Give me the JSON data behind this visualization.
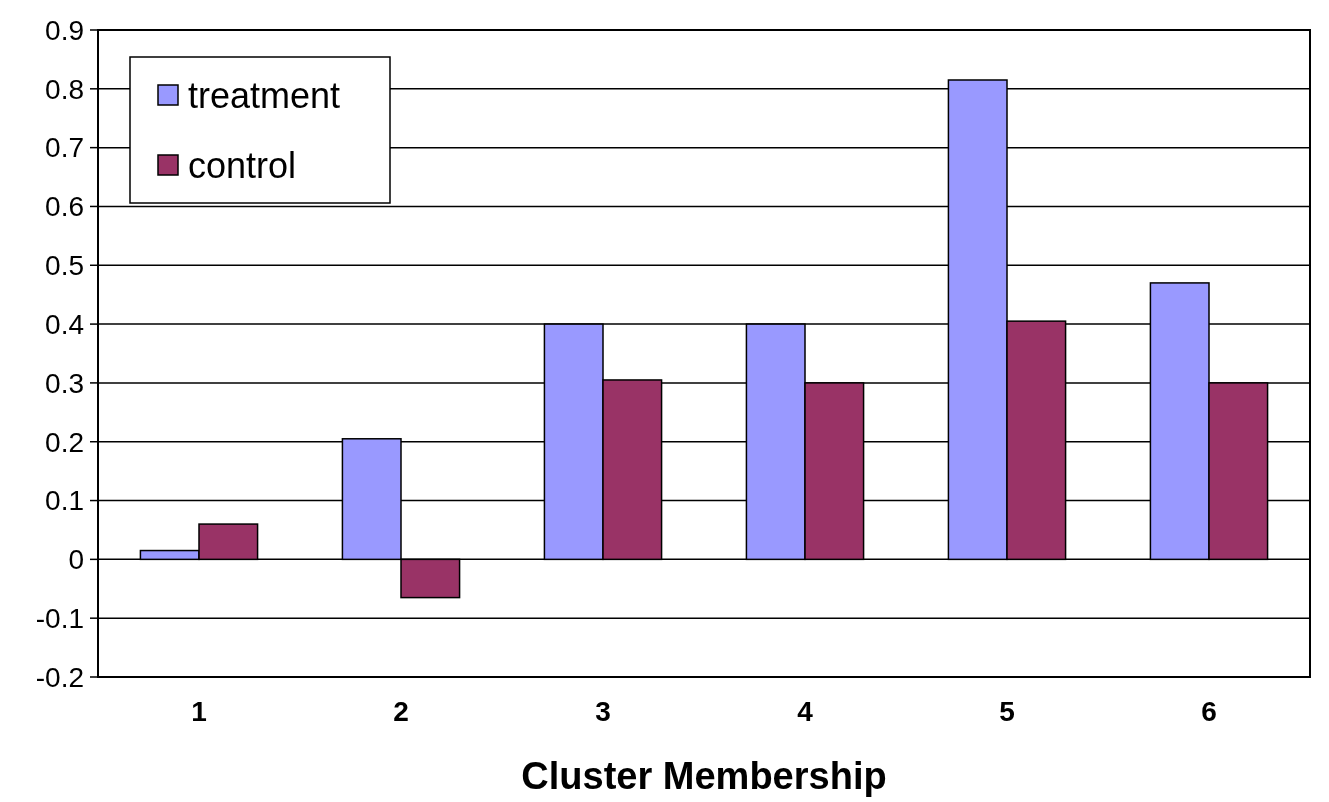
{
  "chart_data": {
    "type": "bar",
    "xlabel": "Cluster Membership",
    "categories": [
      "1",
      "2",
      "3",
      "4",
      "5",
      "6"
    ],
    "series": [
      {
        "name": "treatment",
        "color": "#9999ff",
        "values": [
          0.015,
          0.205,
          0.4,
          0.4,
          0.815,
          0.47
        ]
      },
      {
        "name": "control",
        "color": "#993366",
        "values": [
          0.06,
          -0.065,
          0.305,
          0.3,
          0.405,
          0.3
        ]
      }
    ],
    "ylim": [
      -0.2,
      0.9
    ],
    "yticks": [
      -0.2,
      -0.1,
      0,
      0.1,
      0.2,
      0.3,
      0.4,
      0.5,
      0.6,
      0.7,
      0.8,
      0.9
    ],
    "grid": "y",
    "legend": "top left"
  }
}
